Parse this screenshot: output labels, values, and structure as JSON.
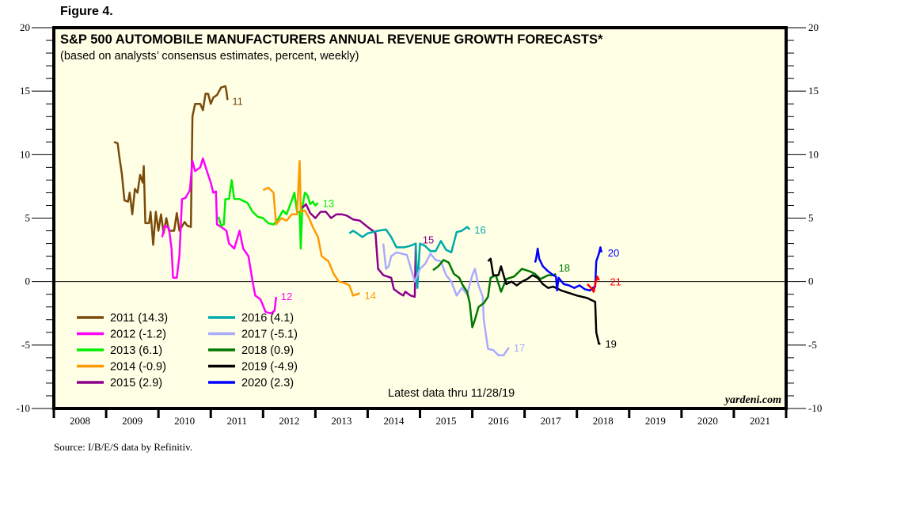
{
  "figure_label": "Figure 4.",
  "source": "Source: I/B/E/S data by Refinitiv.",
  "chart_data": {
    "type": "line",
    "title": "S&P 500 AUTOMOBILE MANUFACTURERS ANNUAL REVENUE GROWTH FORECASTS*",
    "subtitle": "(based on analysts’ consensus estimates, percent, weekly)",
    "xlabel": "",
    "ylabel": "",
    "xlim": [
      2008,
      2022
    ],
    "ylim": [
      -10,
      20
    ],
    "x_ticks": [
      "2008",
      "2009",
      "2010",
      "2011",
      "2012",
      "2013",
      "2014",
      "2015",
      "2016",
      "2017",
      "2018",
      "2019",
      "2020",
      "2021"
    ],
    "y_ticks": [
      -10,
      -5,
      0,
      5,
      10,
      15,
      20
    ],
    "zero_line": true,
    "grid": false,
    "background": "#ffffe6",
    "annotation": "Latest data thru  11/28/19",
    "watermark": "yardeni.com",
    "legend_position": "bottom-left",
    "series": [
      {
        "name": "2011 (14.3)",
        "label": "11",
        "color": "#7a4a0a",
        "points": [
          [
            2009.15,
            11.0
          ],
          [
            2009.22,
            10.9
          ],
          [
            2009.25,
            9.9
          ],
          [
            2009.3,
            8.5
          ],
          [
            2009.35,
            6.4
          ],
          [
            2009.42,
            6.3
          ],
          [
            2009.45,
            7.0
          ],
          [
            2009.5,
            5.3
          ],
          [
            2009.55,
            7.3
          ],
          [
            2009.6,
            7.0
          ],
          [
            2009.65,
            8.4
          ],
          [
            2009.7,
            7.8
          ],
          [
            2009.72,
            9.1
          ],
          [
            2009.75,
            4.6
          ],
          [
            2009.82,
            4.6
          ],
          [
            2009.85,
            5.5
          ],
          [
            2009.9,
            2.9
          ],
          [
            2009.95,
            5.5
          ],
          [
            2010.0,
            4.0
          ],
          [
            2010.05,
            5.3
          ],
          [
            2010.1,
            3.8
          ],
          [
            2010.15,
            5.0
          ],
          [
            2010.2,
            4.0
          ],
          [
            2010.3,
            4.0
          ],
          [
            2010.35,
            5.4
          ],
          [
            2010.4,
            4.0
          ],
          [
            2010.5,
            4.7
          ],
          [
            2010.55,
            4.4
          ],
          [
            2010.62,
            4.3
          ],
          [
            2010.65,
            13.0
          ],
          [
            2010.7,
            14.0
          ],
          [
            2010.8,
            14.0
          ],
          [
            2010.85,
            13.5
          ],
          [
            2010.9,
            14.8
          ],
          [
            2010.95,
            14.8
          ],
          [
            2011.0,
            14.0
          ],
          [
            2011.05,
            14.5
          ],
          [
            2011.12,
            14.7
          ],
          [
            2011.2,
            15.3
          ],
          [
            2011.28,
            15.4
          ],
          [
            2011.3,
            15.0
          ],
          [
            2011.32,
            14.3
          ]
        ]
      },
      {
        "name": "2012 (-1.2)",
        "label": "12",
        "color": "#ff00ff",
        "points": [
          [
            2010.07,
            3.5
          ],
          [
            2010.12,
            4.4
          ],
          [
            2010.2,
            4.2
          ],
          [
            2010.25,
            2.6
          ],
          [
            2010.28,
            0.3
          ],
          [
            2010.35,
            0.3
          ],
          [
            2010.4,
            2.0
          ],
          [
            2010.45,
            6.5
          ],
          [
            2010.52,
            6.6
          ],
          [
            2010.6,
            7.2
          ],
          [
            2010.65,
            9.5
          ],
          [
            2010.7,
            8.7
          ],
          [
            2010.8,
            9.0
          ],
          [
            2010.85,
            9.7
          ],
          [
            2010.92,
            8.8
          ],
          [
            2011.0,
            7.8
          ],
          [
            2011.05,
            7.0
          ],
          [
            2011.1,
            7.1
          ],
          [
            2011.12,
            4.5
          ],
          [
            2011.2,
            4.3
          ],
          [
            2011.3,
            4.0
          ],
          [
            2011.35,
            3.0
          ],
          [
            2011.45,
            2.6
          ],
          [
            2011.55,
            4.0
          ],
          [
            2011.62,
            2.6
          ],
          [
            2011.72,
            2.0
          ],
          [
            2011.8,
            0.0
          ],
          [
            2011.85,
            -1.1
          ],
          [
            2011.95,
            -1.4
          ],
          [
            2012.05,
            -2.4
          ],
          [
            2012.15,
            -2.5
          ],
          [
            2012.22,
            -2.3
          ],
          [
            2012.25,
            -1.2
          ]
        ]
      },
      {
        "name": "2013 (6.1)",
        "label": "13",
        "color": "#00ee00",
        "points": [
          [
            2011.15,
            5.1
          ],
          [
            2011.2,
            4.4
          ],
          [
            2011.25,
            4.5
          ],
          [
            2011.28,
            6.5
          ],
          [
            2011.35,
            6.5
          ],
          [
            2011.4,
            8.0
          ],
          [
            2011.45,
            6.5
          ],
          [
            2011.55,
            6.5
          ],
          [
            2011.7,
            6.2
          ],
          [
            2011.8,
            5.5
          ],
          [
            2011.9,
            5.1
          ],
          [
            2012.0,
            5.0
          ],
          [
            2012.1,
            4.6
          ],
          [
            2012.2,
            4.5
          ],
          [
            2012.3,
            5.0
          ],
          [
            2012.38,
            5.6
          ],
          [
            2012.45,
            5.3
          ],
          [
            2012.55,
            6.4
          ],
          [
            2012.6,
            7.0
          ],
          [
            2012.65,
            5.5
          ],
          [
            2012.7,
            5.5
          ],
          [
            2012.72,
            2.6
          ],
          [
            2012.75,
            5.8
          ],
          [
            2012.8,
            7.0
          ],
          [
            2012.85,
            6.8
          ],
          [
            2012.9,
            6.1
          ],
          [
            2012.95,
            6.3
          ],
          [
            2013.0,
            6.0
          ],
          [
            2013.05,
            6.2
          ]
        ]
      },
      {
        "name": "2014 (-0.9)",
        "label": "14",
        "color": "#ff9900",
        "points": [
          [
            2012.0,
            7.2
          ],
          [
            2012.1,
            7.4
          ],
          [
            2012.2,
            7.0
          ],
          [
            2012.25,
            4.5
          ],
          [
            2012.35,
            5.0
          ],
          [
            2012.45,
            4.8
          ],
          [
            2012.55,
            5.3
          ],
          [
            2012.65,
            5.3
          ],
          [
            2012.7,
            9.5
          ],
          [
            2012.72,
            5.5
          ],
          [
            2012.8,
            5.6
          ],
          [
            2012.88,
            5.0
          ],
          [
            2012.95,
            4.3
          ],
          [
            2013.05,
            3.5
          ],
          [
            2013.12,
            2.0
          ],
          [
            2013.25,
            1.6
          ],
          [
            2013.35,
            0.6
          ],
          [
            2013.45,
            0.0
          ],
          [
            2013.55,
            -0.1
          ],
          [
            2013.65,
            -0.3
          ],
          [
            2013.72,
            -1.1
          ],
          [
            2013.8,
            -1.0
          ],
          [
            2013.85,
            -0.9
          ]
        ]
      },
      {
        "name": "2015 (2.9)",
        "label": "15",
        "color": "#8b008b",
        "points": [
          [
            2012.75,
            5.8
          ],
          [
            2012.82,
            6.1
          ],
          [
            2012.9,
            5.4
          ],
          [
            2013.0,
            5.0
          ],
          [
            2013.1,
            5.5
          ],
          [
            2013.2,
            5.5
          ],
          [
            2013.3,
            5.0
          ],
          [
            2013.4,
            5.3
          ],
          [
            2013.5,
            5.3
          ],
          [
            2013.6,
            5.2
          ],
          [
            2013.72,
            4.9
          ],
          [
            2013.85,
            4.8
          ],
          [
            2014.0,
            4.3
          ],
          [
            2014.1,
            4.0
          ],
          [
            2014.15,
            3.8
          ],
          [
            2014.2,
            1.0
          ],
          [
            2014.3,
            0.5
          ],
          [
            2014.45,
            0.3
          ],
          [
            2014.5,
            -0.6
          ],
          [
            2014.6,
            -0.9
          ],
          [
            2014.68,
            -1.1
          ],
          [
            2014.72,
            -0.8
          ],
          [
            2014.82,
            -1.1
          ],
          [
            2014.9,
            -1.2
          ],
          [
            2014.92,
            2.9
          ]
        ]
      },
      {
        "name": "2016 (4.1)",
        "label": "16",
        "color": "#00aaaa",
        "points": [
          [
            2013.65,
            3.8
          ],
          [
            2013.72,
            4.0
          ],
          [
            2013.8,
            3.8
          ],
          [
            2013.9,
            3.5
          ],
          [
            2014.0,
            3.8
          ],
          [
            2014.1,
            3.9
          ],
          [
            2014.2,
            4.0
          ],
          [
            2014.35,
            4.1
          ],
          [
            2014.45,
            3.5
          ],
          [
            2014.55,
            2.7
          ],
          [
            2014.7,
            2.7
          ],
          [
            2014.8,
            2.8
          ],
          [
            2014.92,
            3.0
          ],
          [
            2014.95,
            -0.5
          ],
          [
            2015.0,
            3.0
          ],
          [
            2015.1,
            2.8
          ],
          [
            2015.2,
            2.4
          ],
          [
            2015.3,
            2.4
          ],
          [
            2015.4,
            3.2
          ],
          [
            2015.5,
            2.5
          ],
          [
            2015.6,
            2.3
          ],
          [
            2015.7,
            3.9
          ],
          [
            2015.8,
            4.0
          ],
          [
            2015.9,
            4.3
          ],
          [
            2015.95,
            4.1
          ]
        ]
      },
      {
        "name": "2017 (-5.1)",
        "label": "17",
        "color": "#aaaaff",
        "points": [
          [
            2014.3,
            3.0
          ],
          [
            2014.35,
            1.0
          ],
          [
            2014.4,
            1.2
          ],
          [
            2014.45,
            2.0
          ],
          [
            2014.55,
            2.3
          ],
          [
            2014.65,
            2.2
          ],
          [
            2014.75,
            2.1
          ],
          [
            2014.9,
            0.0
          ],
          [
            2015.0,
            1.0
          ],
          [
            2015.1,
            1.4
          ],
          [
            2015.2,
            2.2
          ],
          [
            2015.3,
            1.7
          ],
          [
            2015.4,
            1.6
          ],
          [
            2015.5,
            0.5
          ],
          [
            2015.6,
            0.0
          ],
          [
            2015.7,
            -1.1
          ],
          [
            2015.8,
            -0.5
          ],
          [
            2015.9,
            -1.0
          ],
          [
            2016.0,
            0.5
          ],
          [
            2016.05,
            1.0
          ],
          [
            2016.12,
            -0.3
          ],
          [
            2016.2,
            -1.2
          ],
          [
            2016.22,
            -3.0
          ],
          [
            2016.3,
            -5.3
          ],
          [
            2016.4,
            -5.4
          ],
          [
            2016.5,
            -5.8
          ],
          [
            2016.6,
            -5.8
          ],
          [
            2016.7,
            -5.2
          ]
        ]
      },
      {
        "name": "2018 (0.9)",
        "label": "18",
        "color": "#007700",
        "points": [
          [
            2015.25,
            0.9
          ],
          [
            2015.35,
            1.2
          ],
          [
            2015.45,
            1.7
          ],
          [
            2015.55,
            1.5
          ],
          [
            2015.65,
            0.6
          ],
          [
            2015.75,
            0.3
          ],
          [
            2015.82,
            -0.3
          ],
          [
            2015.9,
            -0.8
          ],
          [
            2015.95,
            -1.7
          ],
          [
            2016.0,
            -3.6
          ],
          [
            2016.05,
            -3.0
          ],
          [
            2016.12,
            -2.0
          ],
          [
            2016.22,
            -1.7
          ],
          [
            2016.3,
            -1.2
          ],
          [
            2016.35,
            0.3
          ],
          [
            2016.45,
            0.5
          ],
          [
            2016.55,
            -0.8
          ],
          [
            2016.65,
            0.2
          ],
          [
            2016.8,
            0.4
          ],
          [
            2016.95,
            1.0
          ],
          [
            2017.1,
            0.8
          ],
          [
            2017.2,
            0.6
          ],
          [
            2017.3,
            0.2
          ],
          [
            2017.45,
            0.5
          ],
          [
            2017.55,
            0.5
          ],
          [
            2017.6,
            0.6
          ]
        ]
      },
      {
        "name": "2019 (-4.9)",
        "label": "19",
        "color": "#000000",
        "points": [
          [
            2016.3,
            1.6
          ],
          [
            2016.35,
            1.8
          ],
          [
            2016.4,
            0.5
          ],
          [
            2016.5,
            0.5
          ],
          [
            2016.55,
            1.2
          ],
          [
            2016.62,
            0.2
          ],
          [
            2016.65,
            -0.2
          ],
          [
            2016.75,
            0.0
          ],
          [
            2016.85,
            -0.3
          ],
          [
            2016.95,
            0.0
          ],
          [
            2017.05,
            0.2
          ],
          [
            2017.15,
            0.5
          ],
          [
            2017.25,
            0.3
          ],
          [
            2017.35,
            -0.2
          ],
          [
            2017.45,
            -0.5
          ],
          [
            2017.55,
            -0.4
          ],
          [
            2017.7,
            -0.7
          ],
          [
            2017.85,
            -0.9
          ],
          [
            2018.0,
            -1.1
          ],
          [
            2018.1,
            -1.2
          ],
          [
            2018.2,
            -1.3
          ],
          [
            2018.3,
            -1.5
          ],
          [
            2018.35,
            -1.6
          ],
          [
            2018.37,
            -4.0
          ],
          [
            2018.42,
            -4.9
          ],
          [
            2018.45,
            -4.9
          ]
        ]
      },
      {
        "name": "2020 (2.3)",
        "label": "20",
        "color": "#0000ff",
        "points": [
          [
            2017.2,
            1.5
          ],
          [
            2017.22,
            1.8
          ],
          [
            2017.25,
            2.6
          ],
          [
            2017.28,
            1.8
          ],
          [
            2017.35,
            1.2
          ],
          [
            2017.45,
            0.8
          ],
          [
            2017.55,
            0.5
          ],
          [
            2017.6,
            0.4
          ],
          [
            2017.62,
            -0.7
          ],
          [
            2017.65,
            0.3
          ],
          [
            2017.75,
            -0.2
          ],
          [
            2017.85,
            -0.3
          ],
          [
            2017.95,
            -0.5
          ],
          [
            2018.05,
            -0.3
          ],
          [
            2018.15,
            -0.6
          ],
          [
            2018.25,
            -0.7
          ],
          [
            2018.3,
            -0.5
          ],
          [
            2018.35,
            -0.4
          ],
          [
            2018.37,
            1.6
          ],
          [
            2018.42,
            2.2
          ],
          [
            2018.45,
            2.7
          ],
          [
            2018.47,
            2.3
          ]
        ]
      },
      {
        "name": "2021",
        "label": "21",
        "color": "#ff0000",
        "legend": false,
        "points": [
          [
            2018.2,
            -0.2
          ],
          [
            2018.27,
            -0.5
          ],
          [
            2018.32,
            -0.8
          ],
          [
            2018.36,
            0.0
          ],
          [
            2018.39,
            0.4
          ],
          [
            2018.42,
            0.1
          ]
        ]
      }
    ]
  }
}
